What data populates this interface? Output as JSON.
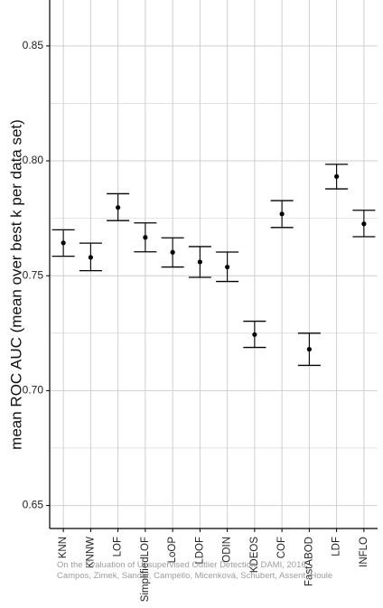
{
  "chart_data": {
    "type": "scatter",
    "subtype": "point-with-error-bars",
    "title": "",
    "xlabel": "",
    "ylabel": "mean ROC AUC (mean over best k per data set)",
    "ylim": [
      0.64,
      0.87
    ],
    "yticks": [
      0.65,
      0.7,
      0.75,
      0.8,
      0.85
    ],
    "ytick_labels": [
      "0.65",
      "0.70",
      "0.75",
      "0.80",
      "0.85"
    ],
    "grid": true,
    "legend": "none",
    "categories": [
      "KNN",
      "KNNW",
      "LOF",
      "SimplifiedLOF",
      "LoOP",
      "LDOF",
      "ODIN",
      "KDEOS",
      "COF",
      "FastABOD",
      "LDF",
      "INFLO"
    ],
    "series": [
      {
        "values": [
          0.7643,
          0.758,
          0.7797,
          0.7667,
          0.7602,
          0.756,
          0.7538,
          0.7244,
          0.7769,
          0.718,
          0.7932,
          0.7726
        ],
        "lower": [
          0.7585,
          0.7522,
          0.774,
          0.7604,
          0.7538,
          0.7493,
          0.7475,
          0.7188,
          0.771,
          0.711,
          0.7878,
          0.767
        ],
        "upper": [
          0.77,
          0.7642,
          0.7857,
          0.773,
          0.7665,
          0.7627,
          0.7603,
          0.7302,
          0.7827,
          0.725,
          0.7985,
          0.7785
        ]
      }
    ],
    "colors": {
      "point": "#000000",
      "grid": "#cfcfcf",
      "axis": "#000000"
    }
  },
  "watermark": {
    "line1": "On the Evaluation of Unsupervised Outlier Detection, DAMI, 2016",
    "line2": "Campos, Zimek, Sander, Campello, Micenková, Schubert, Assent, Houle"
  }
}
